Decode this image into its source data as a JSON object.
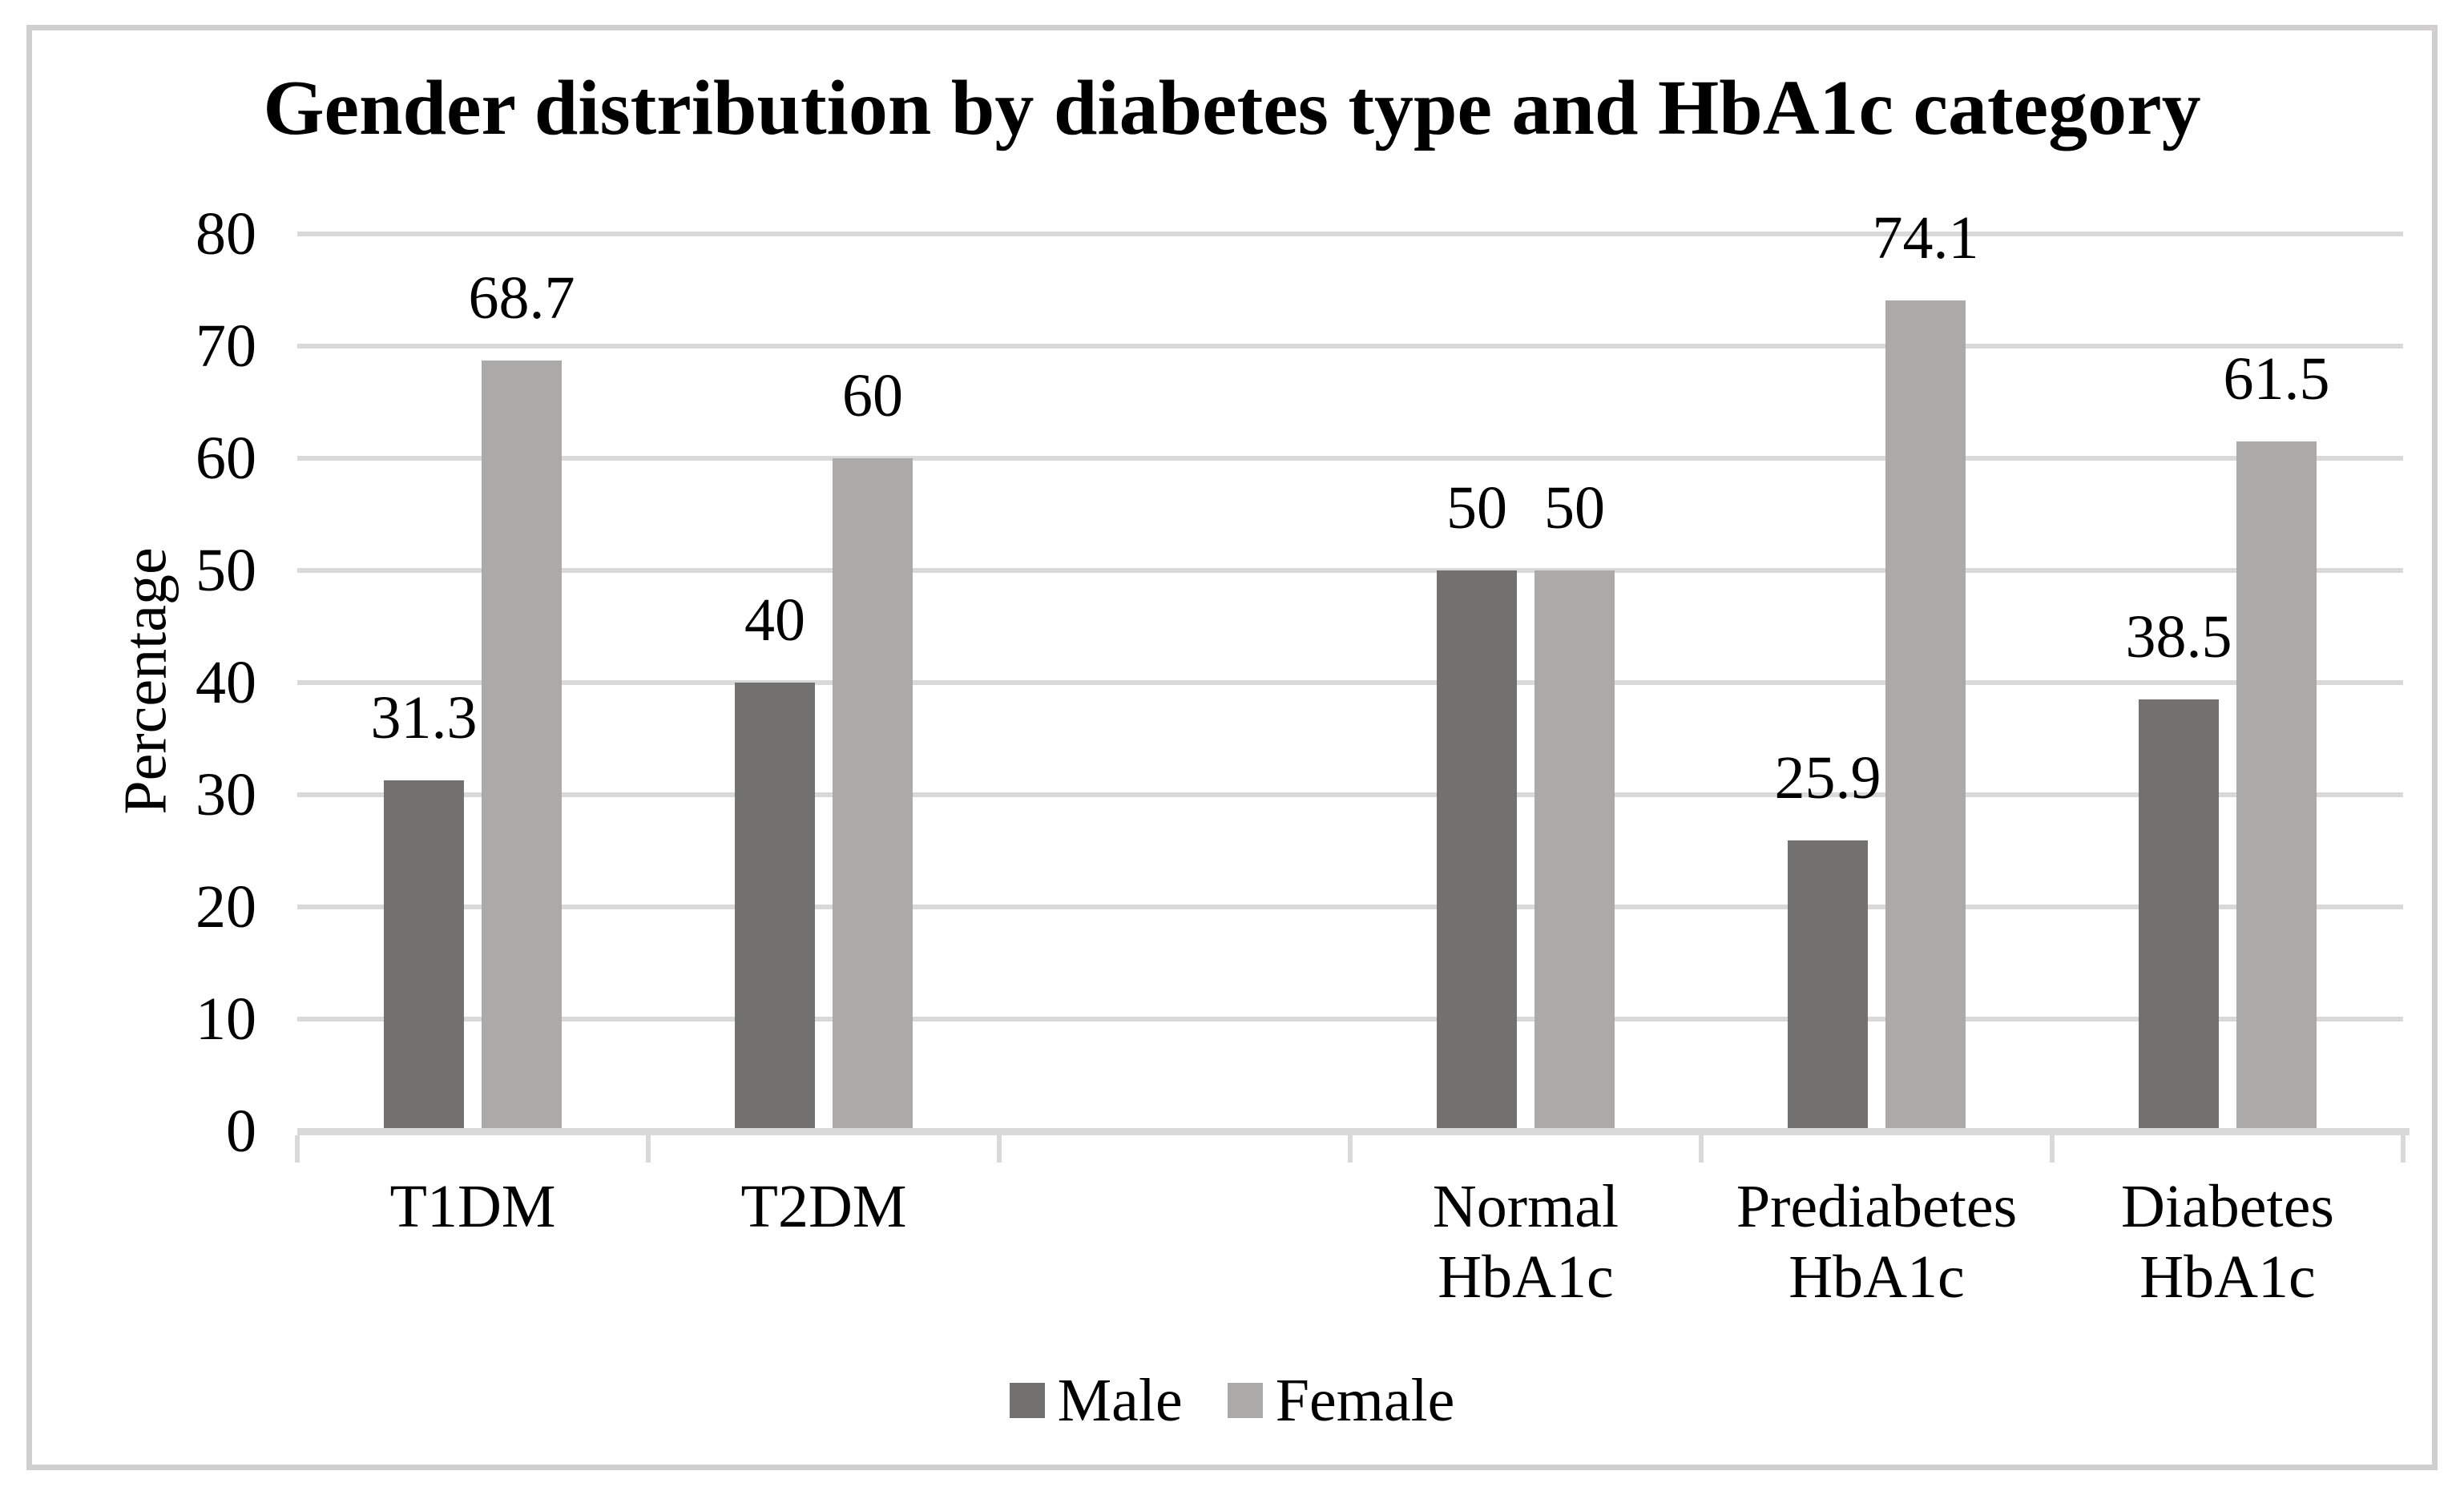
{
  "chart_data": {
    "type": "bar",
    "title": "Gender distribution by diabetes type and HbA1c category",
    "ylabel": "Percentage",
    "ylim": [
      0,
      80
    ],
    "yticks": [
      0,
      10,
      20,
      30,
      40,
      50,
      60,
      70,
      80
    ],
    "grid": true,
    "legend_position": "bottom",
    "categories": [
      "T1DM",
      "T2DM",
      "",
      "Normal HbA1c",
      "Prediabetes HbA1c",
      "Diabetes HbA1c"
    ],
    "category_lines": [
      [
        "T1DM"
      ],
      [
        "T2DM"
      ],
      [],
      [
        "Normal",
        "HbA1c"
      ],
      [
        "Prediabetes",
        "HbA1c"
      ],
      [
        "Diabetes",
        "HbA1c"
      ]
    ],
    "series": [
      {
        "name": "Male",
        "color": "#737070",
        "values": [
          31.3,
          40,
          null,
          50,
          25.9,
          38.5
        ],
        "labels": [
          "31.3",
          "40",
          "",
          "50",
          "25.9",
          "38.5"
        ]
      },
      {
        "name": "Female",
        "color": "#ACA9A9",
        "values": [
          68.7,
          60,
          null,
          50,
          74.1,
          61.5
        ],
        "labels": [
          "68.7",
          "60",
          "",
          "50",
          "74.1",
          "61.5"
        ]
      }
    ]
  },
  "colors": {
    "gridline": "#d9d9d9",
    "axis_line": "#d9d9d9",
    "tick": "#d9d9d9",
    "border": "#d0cece",
    "text": "#000000",
    "background": "#ffffff"
  }
}
